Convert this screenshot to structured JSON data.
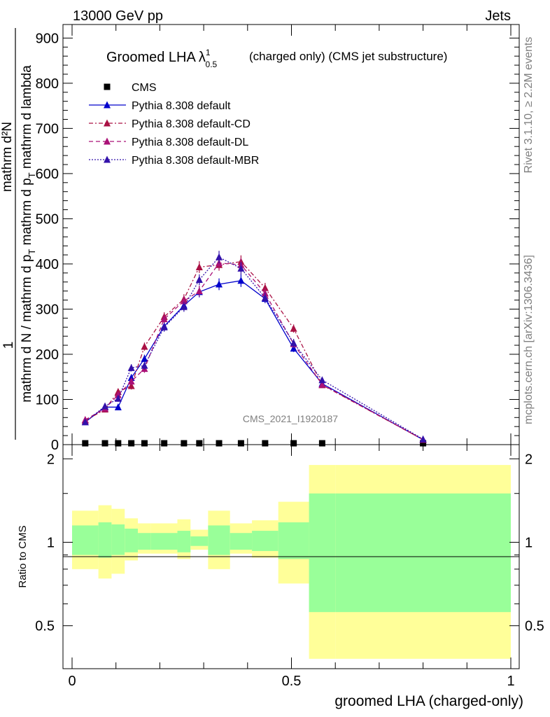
{
  "header": {
    "left": "13000 GeV pp",
    "right": "Jets"
  },
  "side_labels": {
    "rivet": "Rivet 3.1.10, ≥ 2.2M events",
    "mcplots": "mcplots.cern.ch [arXiv:1306.3436]"
  },
  "watermark": "CMS_2021_I1920187",
  "title": {
    "main": "Groomed LHA",
    "lambda": "λ",
    "sup": "1",
    "sub": "0.5",
    "rest": "(charged only) (CMS jet substructure)"
  },
  "top_ylabel": {
    "numerator": "mathrm d²N",
    "denominator": "mathrm d N / mathrm d p",
    "denominator_sub": "T",
    "denominator_tail": " mathrm d p",
    "tail_sub": "T",
    "tail_rest": " mathrm d lambda",
    "prefix": "1"
  },
  "ratio_ylabel": "Ratio to CMS",
  "xlabel": "groomed LHA (charged-only)",
  "chart_data": {
    "type": "line",
    "xlim": [
      -0.02,
      1.0
    ],
    "ylim_top": [
      0,
      930
    ],
    "ylim_ratio": [
      0.35,
      2.25
    ],
    "x_ticks": [
      0,
      0.5,
      1
    ],
    "x_tick_labels": [
      "0",
      "0.5",
      "1"
    ],
    "y_ticks_top": [
      0,
      100,
      200,
      300,
      400,
      500,
      600,
      700,
      800,
      900
    ],
    "y_tick_labels_top": [
      "0",
      "100",
      "200",
      "300",
      "400",
      "500",
      "600",
      "700",
      "800",
      "900"
    ],
    "y_ticks_ratio": [
      0.5,
      1,
      2
    ],
    "y_tick_labels_ratio": [
      "0.5",
      "1",
      "2"
    ],
    "bin_edges": [
      0,
      0.06,
      0.09,
      0.12,
      0.15,
      0.18,
      0.24,
      0.27,
      0.31,
      0.36,
      0.41,
      0.47,
      0.54,
      0.6,
      1.0
    ],
    "bin_centers": [
      0.03,
      0.075,
      0.105,
      0.135,
      0.165,
      0.21,
      0.255,
      0.29,
      0.335,
      0.385,
      0.44,
      0.505,
      0.57,
      0.8
    ],
    "legend_position": "top-left",
    "series": [
      {
        "name": "CMS",
        "style": "marker",
        "color": "#000000",
        "values": [
          3,
          3,
          3,
          3,
          3,
          3,
          3,
          3,
          3,
          3,
          3,
          3,
          3,
          3
        ]
      },
      {
        "name": "Pythia 8.308 default",
        "style": "solid",
        "color": "#0000cc",
        "values": [
          50,
          83,
          83,
          148,
          190,
          262,
          308,
          338,
          355,
          363,
          323,
          213,
          135,
          11
        ],
        "errors": [
          5,
          6,
          6,
          8,
          9,
          10,
          11,
          12,
          13,
          14,
          10,
          8,
          6,
          2
        ]
      },
      {
        "name": "Pythia 8.308 default-CD",
        "style": "dashdot",
        "color": "#aa1144",
        "values": [
          53,
          78,
          117,
          130,
          217,
          283,
          322,
          393,
          398,
          405,
          347,
          257,
          132,
          11
        ],
        "errors": [
          5,
          6,
          7,
          8,
          9,
          10,
          11,
          13,
          13,
          14,
          11,
          9,
          6,
          2
        ]
      },
      {
        "name": "Pythia 8.308 default-DL",
        "style": "dashed",
        "color": "#aa1177",
        "values": [
          55,
          80,
          110,
          140,
          168,
          278,
          318,
          340,
          402,
          398,
          335,
          223,
          133,
          11
        ],
        "errors": [
          5,
          6,
          7,
          8,
          9,
          10,
          11,
          12,
          13,
          14,
          11,
          9,
          6,
          2
        ]
      },
      {
        "name": "Pythia 8.308 default-MBR",
        "style": "dotted",
        "color": "#3311aa",
        "values": [
          50,
          85,
          102,
          170,
          175,
          260,
          305,
          365,
          415,
          390,
          325,
          225,
          143,
          12
        ],
        "errors": [
          5,
          6,
          7,
          8,
          9,
          10,
          11,
          12,
          14,
          14,
          11,
          9,
          6,
          2
        ]
      }
    ],
    "ratio_bands": {
      "inner_color": "#99ff99",
      "outer_color": "#ffff99",
      "inner_hi": [
        1.15,
        1.18,
        1.16,
        1.12,
        1.08,
        1.08,
        1.1,
        1.05,
        1.15,
        1.08,
        1.1,
        1.18,
        1.5,
        1.5
      ],
      "inner_lo": [
        0.9,
        0.88,
        0.9,
        0.92,
        0.94,
        0.94,
        0.92,
        0.97,
        0.9,
        0.94,
        0.93,
        0.87,
        0.56,
        0.56
      ],
      "outer_hi": [
        1.3,
        1.36,
        1.32,
        1.22,
        1.17,
        1.17,
        1.21,
        1.11,
        1.3,
        1.17,
        1.2,
        1.4,
        1.9,
        1.9
      ],
      "outer_lo": [
        0.8,
        0.74,
        0.77,
        0.86,
        0.91,
        0.91,
        0.87,
        0.94,
        0.8,
        0.91,
        0.88,
        0.71,
        0.38,
        0.38
      ]
    }
  }
}
